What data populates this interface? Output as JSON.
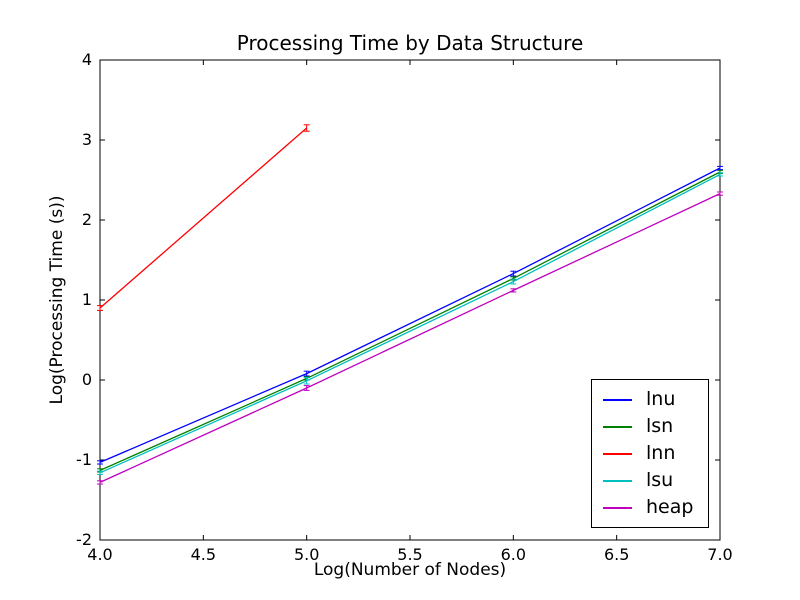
{
  "chart_data": {
    "type": "line",
    "title": "Processing Time by Data Structure",
    "xlabel": "Log(Number of Nodes)",
    "ylabel": "Log(Processing Time (s))",
    "xlim": [
      4.0,
      7.0
    ],
    "ylim": [
      -2.0,
      4.0
    ],
    "xtick_values": [
      4.0,
      4.5,
      5.0,
      5.5,
      6.0,
      6.5,
      7.0
    ],
    "xtick_labels": [
      "4.0",
      "4.5",
      "5.0",
      "5.5",
      "6.0",
      "6.5",
      "7.0"
    ],
    "ytick_values": [
      -2,
      -1,
      0,
      1,
      2,
      3,
      4
    ],
    "ytick_labels": [
      "-2",
      "-1",
      "0",
      "1",
      "2",
      "3",
      "4"
    ],
    "grid": false,
    "axes_color": "#000000",
    "background_color": "#ffffff",
    "legend": {
      "position": "lower right",
      "entries": [
        "lnu",
        "lsn",
        "lnn",
        "lsu",
        "heap"
      ]
    },
    "series": [
      {
        "name": "lnu",
        "color": "#0000ff",
        "x": [
          4,
          5,
          6,
          7
        ],
        "y": [
          -1.03,
          0.08,
          1.33,
          2.65
        ],
        "yerr": [
          0.02,
          0.03,
          0.03,
          0.02
        ]
      },
      {
        "name": "lsn",
        "color": "#008000",
        "x": [
          4,
          5,
          6,
          7
        ],
        "y": [
          -1.13,
          0.02,
          1.27,
          2.6
        ],
        "yerr": [
          0.02,
          0.02,
          0.02,
          0.02
        ]
      },
      {
        "name": "lnn",
        "color": "#ff0000",
        "x": [
          4,
          5
        ],
        "y": [
          0.9,
          3.15
        ],
        "yerr": [
          0.03,
          0.04
        ]
      },
      {
        "name": "lsu",
        "color": "#00bfbf",
        "x": [
          4,
          5,
          6,
          7
        ],
        "y": [
          -1.16,
          -0.01,
          1.23,
          2.57
        ],
        "yerr": [
          0.02,
          0.04,
          0.03,
          0.02
        ]
      },
      {
        "name": "heap",
        "color": "#bf00bf",
        "x": [
          4,
          5,
          6,
          7
        ],
        "y": [
          -1.28,
          -0.1,
          1.12,
          2.33
        ],
        "yerr": [
          0.02,
          0.03,
          0.02,
          0.02
        ]
      }
    ]
  }
}
